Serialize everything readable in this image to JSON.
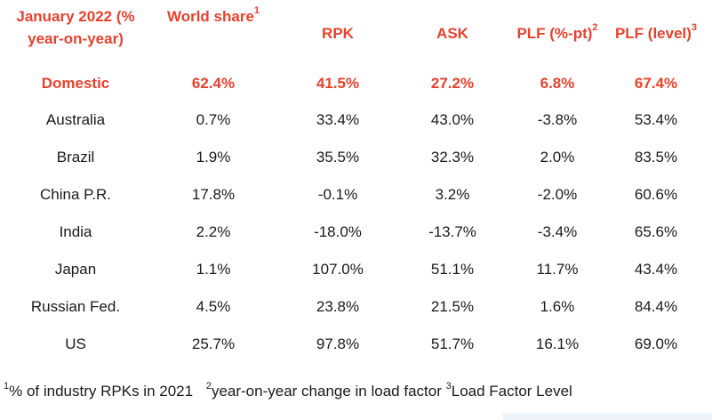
{
  "table": {
    "headers": {
      "col0_line1": "January 2022 (%",
      "col0_line2": "year-on-year)",
      "world_share": "World share",
      "world_share_sup": "1",
      "rpk": "RPK",
      "ask": "ASK",
      "plf_pt": "PLF (%-pt)",
      "plf_pt_sup": "2",
      "plf_level": "PLF (level)",
      "plf_level_sup": "3"
    },
    "rows": [
      {
        "market": "Domestic",
        "world_share": "62.4%",
        "rpk": "41.5%",
        "ask": "27.2%",
        "plf_pt": "6.8%",
        "plf_level": "67.4%"
      },
      {
        "market": "Australia",
        "world_share": "0.7%",
        "rpk": "33.4%",
        "ask": "43.0%",
        "plf_pt": "-3.8%",
        "plf_level": "53.4%"
      },
      {
        "market": "Brazil",
        "world_share": "1.9%",
        "rpk": "35.5%",
        "ask": "32.3%",
        "plf_pt": "2.0%",
        "plf_level": "83.5%"
      },
      {
        "market": "China P.R.",
        "world_share": "17.8%",
        "rpk": "-0.1%",
        "ask": "3.2%",
        "plf_pt": "-2.0%",
        "plf_level": "60.6%"
      },
      {
        "market": "India",
        "world_share": "2.2%",
        "rpk": "-18.0%",
        "ask": "-13.7%",
        "plf_pt": "-3.4%",
        "plf_level": "65.6%"
      },
      {
        "market": "Japan",
        "world_share": "1.1%",
        "rpk": "107.0%",
        "ask": "51.1%",
        "plf_pt": "11.7%",
        "plf_level": "43.4%"
      },
      {
        "market": "Russian Fed.",
        "world_share": "4.5%",
        "rpk": "23.8%",
        "ask": "21.5%",
        "plf_pt": "1.6%",
        "plf_level": "84.4%"
      },
      {
        "market": "US",
        "world_share": "25.7%",
        "rpk": "97.8%",
        "ask": "51.7%",
        "plf_pt": "16.1%",
        "plf_level": "69.0%"
      }
    ]
  },
  "footnotes": {
    "n1_sup": "1",
    "n1_text": "% of industry RPKs in 2021",
    "n2_sup": "2",
    "n2_text": "year-on-year change in load factor",
    "n3_sup": "3",
    "n3_text": "Load Factor Level"
  },
  "colors": {
    "accent": "#e8412c",
    "text": "#1a1a1a",
    "background": "#ffffff"
  }
}
